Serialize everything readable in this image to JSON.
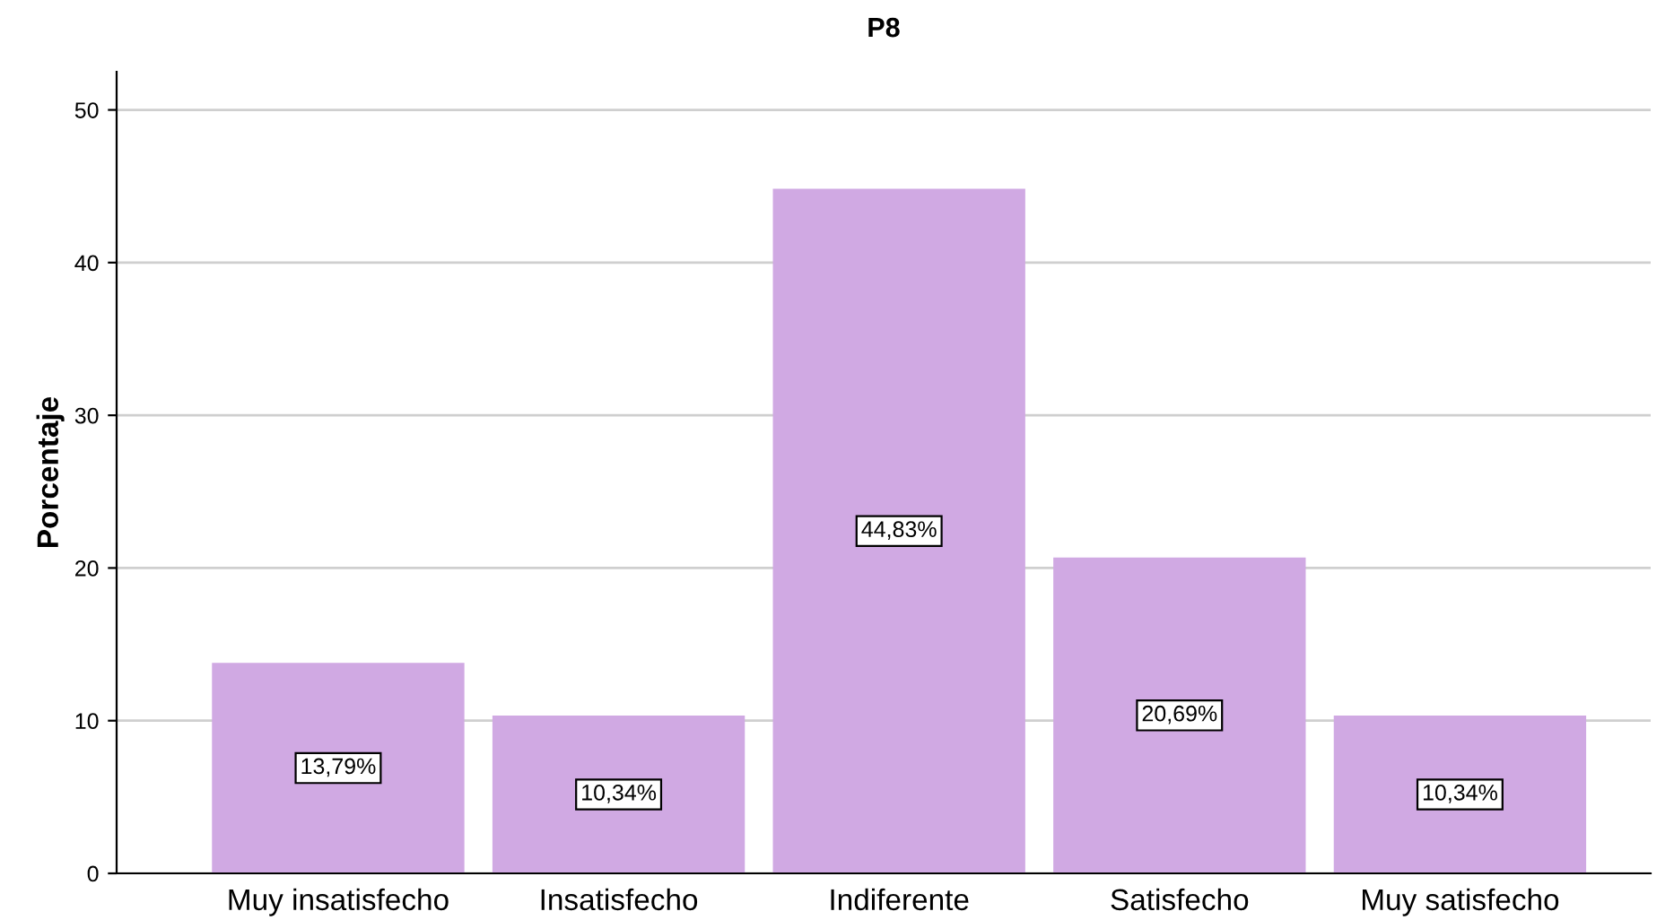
{
  "chart_data": {
    "type": "bar",
    "title": "P8",
    "ylabel": "Porcentaje",
    "categories": [
      "Muy insatisfecho",
      "Insatisfecho",
      "Indiferente",
      "Satisfecho",
      "Muy satisfecho"
    ],
    "values": [
      13.79,
      10.34,
      44.83,
      20.69,
      10.34
    ],
    "value_labels": [
      "13,79%",
      "10,34%",
      "44,83%",
      "20,69%",
      "10,34%"
    ],
    "color": "#d0a9e3",
    "ylim": [
      0,
      52.5
    ],
    "yticks": [
      0,
      10,
      20,
      30,
      40,
      50
    ],
    "grid": "y",
    "legend": false
  }
}
